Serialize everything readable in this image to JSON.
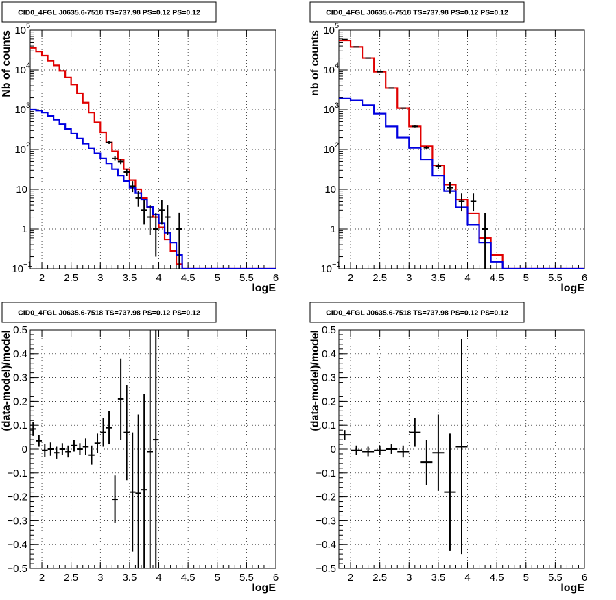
{
  "page": {
    "background": "#ffffff"
  },
  "colors": {
    "data": "#000000",
    "total_model": "#e00000",
    "component_model": "#0000e0",
    "grid": "#000000"
  },
  "chart_data": [
    {
      "type": "line",
      "title": "CID0_4FGL J0635.6-7518 TS=737.98 PS=0.12 PS=0.12",
      "xlabel": "logE",
      "ylabel": "Nb of counts",
      "xlim": [
        1.8,
        6.0
      ],
      "ylim": [
        0.1,
        100000
      ],
      "yscale": "log",
      "grid": true,
      "x_ticks": [
        "2",
        "2.5",
        "3",
        "3.5",
        "4",
        "4.5",
        "5",
        "5.5",
        "6"
      ],
      "y_ticks": [
        {
          "value": 0.1,
          "base": "10",
          "exp": "−1"
        },
        {
          "value": 1,
          "label": "1"
        },
        {
          "value": 10,
          "label": "10"
        },
        {
          "value": 100,
          "base": "10",
          "exp": "2"
        },
        {
          "value": 1000,
          "base": "10",
          "exp": "3"
        },
        {
          "value": 10000,
          "base": "10",
          "exp": "4"
        },
        {
          "value": 100000,
          "base": "10",
          "exp": "5"
        }
      ],
      "bin_edges": [
        1.8,
        1.9,
        2.0,
        2.1,
        2.2,
        2.3,
        2.4,
        2.5,
        2.6,
        2.7,
        2.8,
        2.9,
        3.0,
        3.1,
        3.2,
        3.3,
        3.4,
        3.5,
        3.6,
        3.7,
        3.8,
        3.9,
        4.0,
        4.1,
        4.2,
        4.3,
        4.4,
        4.5,
        4.6,
        4.7,
        4.8,
        4.9,
        5.0,
        5.1,
        5.2,
        5.3,
        5.4,
        5.5,
        5.6,
        5.7,
        5.8,
        5.9,
        6.0
      ],
      "series": [
        {
          "role": "total_model",
          "values": [
            36000,
            29000,
            23000,
            17000,
            13000,
            9500,
            6500,
            4300,
            2600,
            1500,
            850,
            480,
            270,
            150,
            90,
            55,
            32,
            17,
            10,
            6,
            3.5,
            2,
            1.1,
            0.55,
            0.28,
            0.13,
            0.1,
            0.1,
            0.1,
            0.1,
            0.1,
            0.1,
            0.1,
            0.1,
            0.1,
            0.1,
            0.1,
            0.1,
            0.1,
            0.1,
            0.1,
            0.1
          ]
        },
        {
          "role": "component_model",
          "values": [
            1000,
            950,
            850,
            700,
            560,
            430,
            330,
            250,
            190,
            140,
            105,
            80,
            60,
            45,
            32,
            22,
            16,
            11,
            8,
            5.5,
            3.6,
            2.3,
            1.4,
            0.8,
            0.45,
            0.22,
            0.1,
            0.1,
            0.1,
            0.1,
            0.1,
            0.1,
            0.1,
            0.1,
            0.1,
            0.1,
            0.1,
            0.1,
            0.1,
            0.1,
            0.1,
            0.1
          ]
        },
        {
          "role": "data",
          "points": [
            {
              "x": 3.15,
              "y": 150,
              "yerr_lo": 12,
              "yerr_hi": 12
            },
            {
              "x": 3.25,
              "y": 60,
              "yerr_lo": 8,
              "yerr_hi": 8
            },
            {
              "x": 3.35,
              "y": 50,
              "yerr_lo": 7,
              "yerr_hi": 7
            },
            {
              "x": 3.45,
              "y": 27,
              "yerr_lo": 5,
              "yerr_hi": 5
            },
            {
              "x": 3.55,
              "y": 12,
              "yerr_lo": 3.5,
              "yerr_hi": 4
            },
            {
              "x": 3.65,
              "y": 6,
              "yerr_lo": 2.4,
              "yerr_hi": 3
            },
            {
              "x": 3.75,
              "y": 3,
              "yerr_lo": 1.7,
              "yerr_hi": 2.5
            },
            {
              "x": 3.85,
              "y": 2,
              "yerr_lo": 1.3,
              "yerr_hi": 2
            },
            {
              "x": 3.95,
              "y": 1,
              "yerr_lo": 0.8,
              "yerr_hi": 1.5
            },
            {
              "x": 4.05,
              "y": 3,
              "yerr_lo": 1.7,
              "yerr_hi": 2.5
            },
            {
              "x": 4.15,
              "y": 2,
              "yerr_lo": 1.3,
              "yerr_hi": 2
            },
            {
              "x": 4.35,
              "y": 1,
              "yerr_lo": 0.9,
              "yerr_hi": 1.6
            }
          ]
        }
      ]
    },
    {
      "type": "line",
      "title": "CID0_4FGL J0635.6-7518 TS=737.98 PS=0.12 PS=0.12",
      "xlabel": "logE",
      "ylabel": "nb of counts",
      "xlim": [
        1.8,
        6.0
      ],
      "ylim": [
        0.1,
        100000
      ],
      "yscale": "log",
      "grid": true,
      "x_ticks": [
        "2",
        "2.5",
        "3",
        "3.5",
        "4",
        "4.5",
        "5",
        "5.5",
        "6"
      ],
      "y_ticks": [
        {
          "value": 0.1,
          "base": "10",
          "exp": "−1"
        },
        {
          "value": 1,
          "label": "1"
        },
        {
          "value": 10,
          "label": "10"
        },
        {
          "value": 100,
          "base": "10",
          "exp": "2"
        },
        {
          "value": 1000,
          "base": "10",
          "exp": "3"
        },
        {
          "value": 10000,
          "base": "10",
          "exp": "4"
        },
        {
          "value": 100000,
          "base": "10",
          "exp": "5"
        }
      ],
      "bin_edges": [
        1.8,
        2.0,
        2.2,
        2.4,
        2.6,
        2.8,
        3.0,
        3.2,
        3.4,
        3.6,
        3.8,
        4.0,
        4.2,
        4.4,
        4.6,
        4.8,
        5.0,
        5.2,
        5.4,
        5.6,
        5.8,
        6.0
      ],
      "series": [
        {
          "role": "total_model",
          "values": [
            55000,
            38000,
            20000,
            9000,
            3500,
            1100,
            380,
            120,
            40,
            13,
            5.5,
            2.5,
            0.6,
            0.22,
            0.1,
            0.1,
            0.1,
            0.1,
            0.1,
            0.1,
            0.1
          ]
        },
        {
          "role": "component_model",
          "values": [
            1900,
            1700,
            1300,
            800,
            380,
            200,
            110,
            55,
            22,
            9,
            3.5,
            1.3,
            0.45,
            0.15,
            0.1,
            0.1,
            0.1,
            0.1,
            0.1,
            0.1,
            0.1
          ]
        },
        {
          "role": "data",
          "points": [
            {
              "x": 1.9,
              "y": 58000,
              "yerr_lo": 250,
              "yerr_hi": 250
            },
            {
              "x": 2.1,
              "y": 38000,
              "yerr_lo": 200,
              "yerr_hi": 200
            },
            {
              "x": 2.3,
              "y": 20000,
              "yerr_lo": 140,
              "yerr_hi": 140
            },
            {
              "x": 2.5,
              "y": 9000,
              "yerr_lo": 95,
              "yerr_hi": 95
            },
            {
              "x": 2.7,
              "y": 3500,
              "yerr_lo": 60,
              "yerr_hi": 60
            },
            {
              "x": 2.9,
              "y": 1100,
              "yerr_lo": 33,
              "yerr_hi": 33
            },
            {
              "x": 3.1,
              "y": 380,
              "yerr_lo": 20,
              "yerr_hi": 20
            },
            {
              "x": 3.3,
              "y": 110,
              "yerr_lo": 11,
              "yerr_hi": 11
            },
            {
              "x": 3.5,
              "y": 38,
              "yerr_lo": 6,
              "yerr_hi": 6
            },
            {
              "x": 3.7,
              "y": 11,
              "yerr_lo": 3.3,
              "yerr_hi": 4
            },
            {
              "x": 3.9,
              "y": 5,
              "yerr_lo": 2.2,
              "yerr_hi": 2.8
            },
            {
              "x": 4.1,
              "y": 5,
              "yerr_lo": 2.2,
              "yerr_hi": 2.8
            },
            {
              "x": 4.3,
              "y": 1,
              "yerr_lo": 0.9,
              "yerr_hi": 1.5
            }
          ]
        }
      ]
    },
    {
      "type": "scatter",
      "title": "CID0_4FGL J0635.6-7518 TS=737.98 PS=0.12 PS=0.12",
      "xlabel": "logE",
      "ylabel": "(data-model)/model",
      "xlim": [
        1.8,
        6.0
      ],
      "ylim": [
        -0.5,
        0.5
      ],
      "grid": true,
      "x_ticks": [
        "2",
        "2.5",
        "3",
        "3.5",
        "4",
        "4.5",
        "5",
        "5.5",
        "6"
      ],
      "y_ticks": [
        "−0.5",
        "−0.4",
        "−0.3",
        "−0.2",
        "−0.1",
        "0",
        "0.1",
        "0.2",
        "0.3",
        "0.4",
        "0.5"
      ],
      "series": [
        {
          "role": "data",
          "xerr": 0.05,
          "points": [
            {
              "x": 1.85,
              "y": 0.085,
              "yerr": 0.03
            },
            {
              "x": 1.95,
              "y": 0.035,
              "yerr": 0.025
            },
            {
              "x": 2.05,
              "y": -0.005,
              "yerr": 0.028
            },
            {
              "x": 2.15,
              "y": 0.0,
              "yerr": 0.028
            },
            {
              "x": 2.25,
              "y": -0.015,
              "yerr": 0.025
            },
            {
              "x": 2.35,
              "y": 0.0,
              "yerr": 0.025
            },
            {
              "x": 2.45,
              "y": -0.01,
              "yerr": 0.025
            },
            {
              "x": 2.55,
              "y": 0.015,
              "yerr": 0.025
            },
            {
              "x": 2.65,
              "y": 0.0,
              "yerr": 0.025
            },
            {
              "x": 2.75,
              "y": 0.01,
              "yerr": 0.035
            },
            {
              "x": 2.85,
              "y": -0.025,
              "yerr": 0.04
            },
            {
              "x": 2.95,
              "y": 0.025,
              "yerr": 0.04
            },
            {
              "x": 3.05,
              "y": 0.07,
              "yerr": 0.06
            },
            {
              "x": 3.15,
              "y": 0.09,
              "yerr": 0.07
            },
            {
              "x": 3.25,
              "y": -0.21,
              "yerr": 0.1
            },
            {
              "x": 3.35,
              "y": 0.21,
              "yerr": 0.17
            },
            {
              "x": 3.45,
              "y": 0.07,
              "yerr": 0.2
            },
            {
              "x": 3.55,
              "y": -0.18,
              "yerr": 0.25
            },
            {
              "x": 3.65,
              "y": -0.185,
              "yerr": 0.33
            },
            {
              "x": 3.75,
              "y": -0.17,
              "yerr": 0.4
            },
            {
              "x": 3.85,
              "y": -0.01,
              "yerr": 0.55
            },
            {
              "x": 3.95,
              "y": 0.04,
              "yerr": 0.55
            }
          ]
        }
      ]
    },
    {
      "type": "scatter",
      "title": "CID0_4FGL J0635.6-7518 TS=737.98 PS=0.12 PS=0.12",
      "xlabel": "logE",
      "ylabel": "(data-model)/model",
      "xlim": [
        1.8,
        6.0
      ],
      "ylim": [
        -0.5,
        0.5
      ],
      "grid": true,
      "x_ticks": [
        "2",
        "2.5",
        "3",
        "3.5",
        "4",
        "4.5",
        "5",
        "5.5",
        "6"
      ],
      "y_ticks": [
        "−0.5",
        "−0.4",
        "−0.3",
        "−0.2",
        "−0.1",
        "0",
        "0.1",
        "0.2",
        "0.3",
        "0.4",
        "0.5"
      ],
      "series": [
        {
          "role": "data",
          "xerr": 0.1,
          "points": [
            {
              "x": 1.9,
              "y": 0.06,
              "yerr": 0.02
            },
            {
              "x": 2.1,
              "y": -0.005,
              "yerr": 0.02
            },
            {
              "x": 2.3,
              "y": -0.01,
              "yerr": 0.02
            },
            {
              "x": 2.5,
              "y": -0.005,
              "yerr": 0.02
            },
            {
              "x": 2.7,
              "y": 0.0,
              "yerr": 0.02
            },
            {
              "x": 2.9,
              "y": -0.01,
              "yerr": 0.025
            },
            {
              "x": 3.1,
              "y": 0.07,
              "yerr": 0.06
            },
            {
              "x": 3.3,
              "y": -0.055,
              "yerr": 0.095
            },
            {
              "x": 3.5,
              "y": -0.015,
              "yerr": 0.16
            },
            {
              "x": 3.7,
              "y": -0.18,
              "yerr": 0.245
            },
            {
              "x": 3.9,
              "y": 0.01,
              "yerr": 0.45
            }
          ]
        }
      ]
    }
  ]
}
